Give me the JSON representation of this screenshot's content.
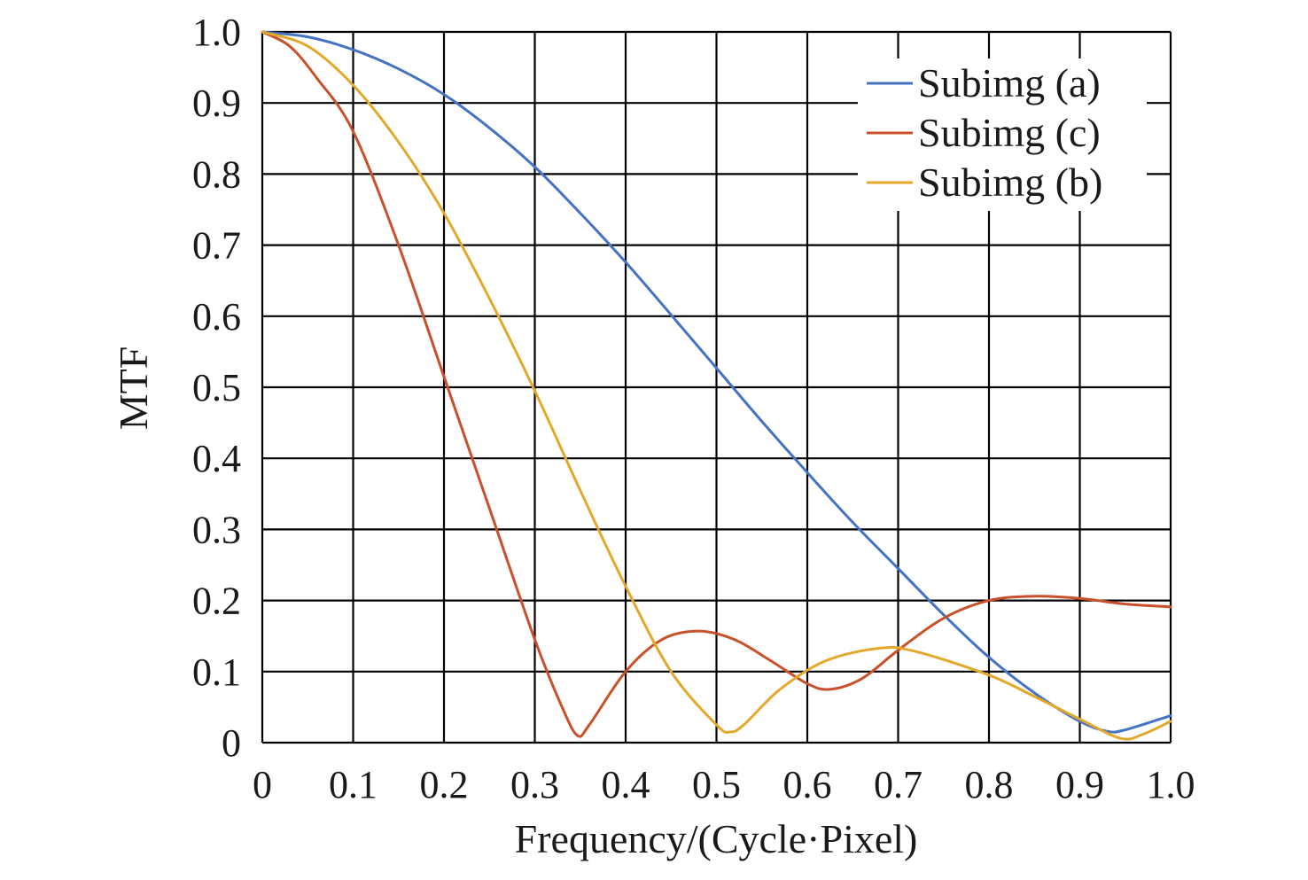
{
  "chart_data": {
    "type": "line",
    "title": "",
    "xlabel": "Frequency/(Cycle·Pixel)",
    "ylabel": "MTF",
    "xlim": [
      0,
      1.0
    ],
    "ylim": [
      0,
      1.0
    ],
    "grid": true,
    "legend_position": "top-right",
    "x_ticks": [
      "0",
      "0.1",
      "0.2",
      "0.3",
      "0.4",
      "0.5",
      "0.6",
      "0.7",
      "0.8",
      "0.9",
      "1.0"
    ],
    "y_ticks": [
      "0",
      "0.1",
      "0.2",
      "0.3",
      "0.4",
      "0.5",
      "0.6",
      "0.7",
      "0.8",
      "0.9",
      "1.0"
    ],
    "x_tick_values": [
      0,
      0.1,
      0.2,
      0.3,
      0.4,
      0.5,
      0.6,
      0.7,
      0.8,
      0.9,
      1.0
    ],
    "y_tick_values": [
      0,
      0.1,
      0.2,
      0.3,
      0.4,
      0.5,
      0.6,
      0.7,
      0.8,
      0.9,
      1.0
    ],
    "series": [
      {
        "name": "Subimg (a)",
        "color": "#4472c4",
        "x": [
          0,
          0.05,
          0.1,
          0.15,
          0.2,
          0.25,
          0.3,
          0.35,
          0.4,
          0.45,
          0.5,
          0.55,
          0.6,
          0.65,
          0.7,
          0.75,
          0.8,
          0.85,
          0.9,
          0.93,
          0.95,
          1.0
        ],
        "y": [
          1.0,
          0.993,
          0.975,
          0.948,
          0.912,
          0.865,
          0.81,
          0.745,
          0.676,
          0.602,
          0.527,
          0.452,
          0.38,
          0.31,
          0.245,
          0.18,
          0.12,
          0.07,
          0.03,
          0.016,
          0.018,
          0.038
        ]
      },
      {
        "name": "Subimg (c)",
        "color": "#c8502a",
        "x": [
          0,
          0.03,
          0.06,
          0.1,
          0.15,
          0.2,
          0.25,
          0.3,
          0.33,
          0.347,
          0.36,
          0.4,
          0.44,
          0.48,
          0.52,
          0.56,
          0.6,
          0.625,
          0.66,
          0.7,
          0.75,
          0.8,
          0.85,
          0.9,
          0.95,
          1.0
        ],
        "y": [
          1.0,
          0.98,
          0.935,
          0.86,
          0.7,
          0.515,
          0.33,
          0.145,
          0.05,
          0.01,
          0.025,
          0.1,
          0.145,
          0.157,
          0.145,
          0.115,
          0.083,
          0.075,
          0.09,
          0.13,
          0.175,
          0.2,
          0.206,
          0.203,
          0.195,
          0.191
        ]
      },
      {
        "name": "Subimg (b)",
        "color": "#e3a82b",
        "x": [
          0,
          0.05,
          0.1,
          0.15,
          0.2,
          0.25,
          0.3,
          0.35,
          0.4,
          0.45,
          0.5,
          0.515,
          0.53,
          0.57,
          0.62,
          0.68,
          0.72,
          0.8,
          0.85,
          0.9,
          0.945,
          0.97,
          1.0
        ],
        "y": [
          1.0,
          0.98,
          0.925,
          0.845,
          0.745,
          0.625,
          0.495,
          0.355,
          0.22,
          0.1,
          0.025,
          0.015,
          0.025,
          0.075,
          0.115,
          0.133,
          0.128,
          0.095,
          0.065,
          0.033,
          0.006,
          0.012,
          0.03
        ]
      }
    ],
    "legend_order": [
      "Subimg (a)",
      "Subimg (c)",
      "Subimg (b)"
    ]
  }
}
